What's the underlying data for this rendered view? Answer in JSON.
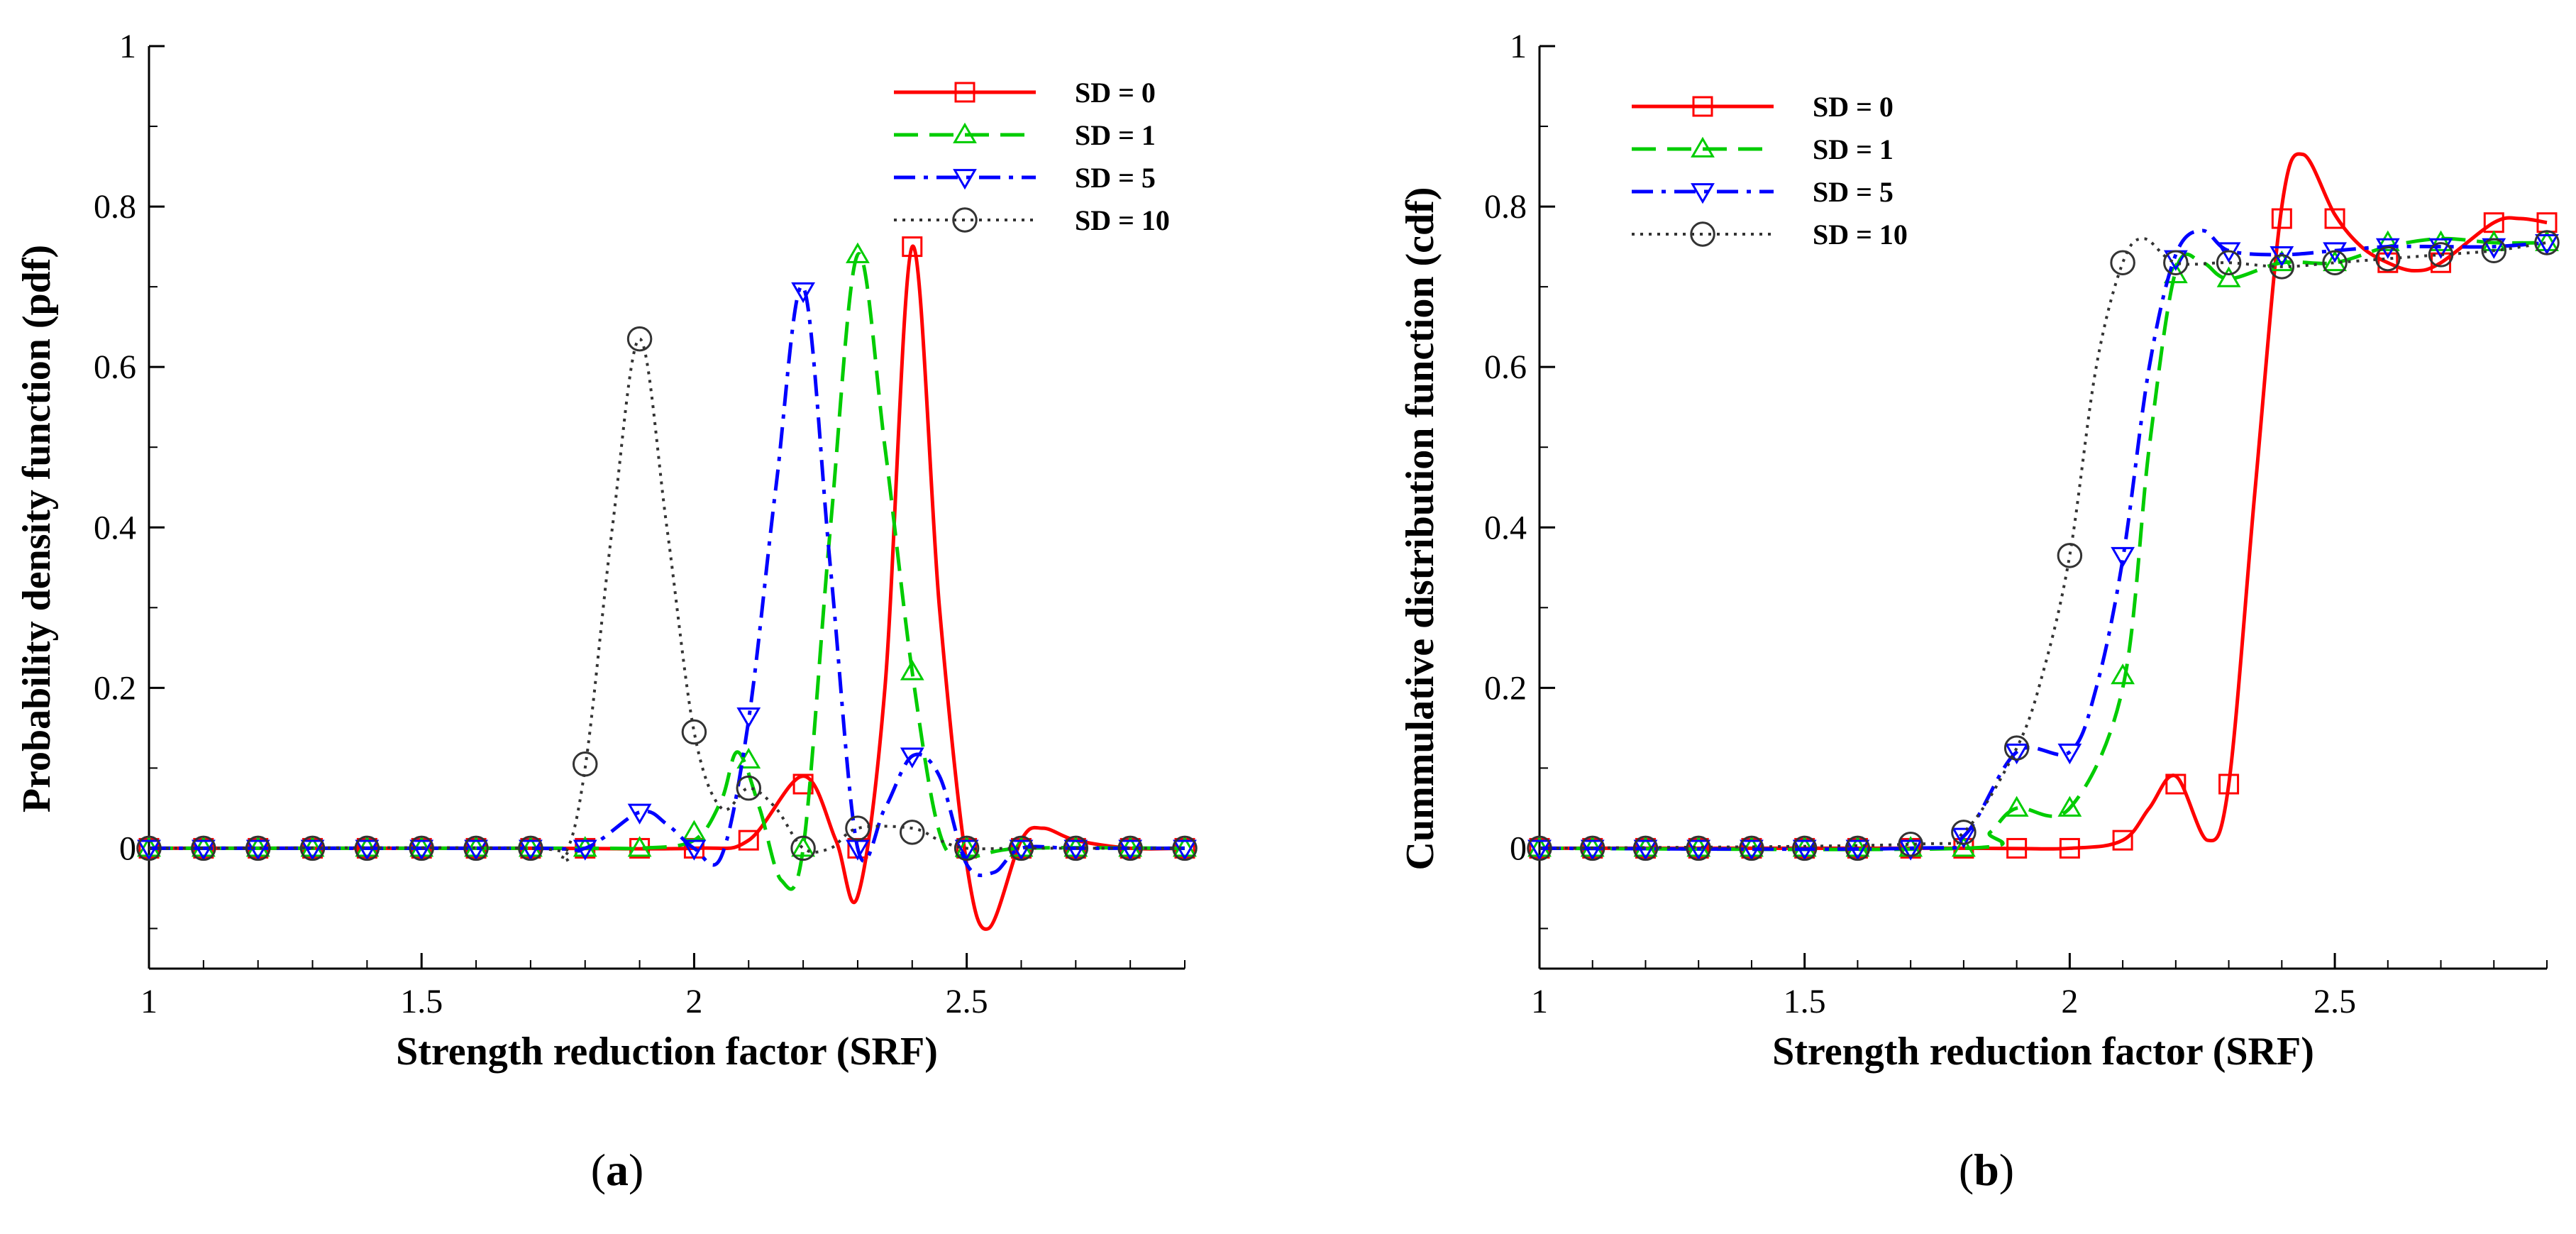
{
  "chart_data": [
    {
      "type": "line",
      "panel": "a",
      "caption_label": "a",
      "xlabel": "Strength reduction factor (SRF)",
      "ylabel": "Probability density function (pdf)",
      "xlim": [
        1,
        2.9
      ],
      "ylim": [
        -0.15,
        1
      ],
      "xticks": [
        1,
        1.5,
        2,
        2.5
      ],
      "xtick_labels": [
        "1",
        "1.5",
        "2",
        "2.5"
      ],
      "yticks": [
        0,
        0.2,
        0.4,
        0.6,
        0.8,
        1
      ],
      "ytick_labels": [
        "0",
        "0.2",
        "0.4",
        "0.6",
        "0.8",
        "1"
      ],
      "legend_position": "top-right",
      "series": [
        {
          "name": "SD = 0",
          "color": "#ff0000",
          "dash": "solid",
          "marker": "square",
          "curve_x": [
            1,
            1.7,
            2.0,
            2.1,
            2.2,
            2.26,
            2.3,
            2.35,
            2.4,
            2.45,
            2.5,
            2.54,
            2.6,
            2.64,
            2.7,
            2.8,
            2.9
          ],
          "curve_y": [
            0,
            0,
            0,
            0.01,
            0.09,
            0.01,
            -0.06,
            0.2,
            0.75,
            0.3,
            -0.02,
            -0.1,
            0.01,
            0.025,
            0.01,
            0,
            0
          ],
          "marker_x": [
            1,
            1.1,
            1.2,
            1.3,
            1.4,
            1.5,
            1.6,
            1.7,
            1.8,
            1.9,
            2.0,
            2.1,
            2.2,
            2.3,
            2.4,
            2.5,
            2.6,
            2.7,
            2.8,
            2.9
          ],
          "marker_y": [
            0,
            0,
            0,
            0,
            0,
            0,
            0,
            0,
            0,
            0,
            0,
            0.01,
            0.08,
            0,
            0.75,
            0,
            0,
            0,
            0,
            0
          ]
        },
        {
          "name": "SD = 1",
          "color": "#00cc00",
          "dash": "dashed",
          "marker": "triangle-up",
          "curve_x": [
            1,
            1.8,
            1.9,
            2.0,
            2.05,
            2.08,
            2.12,
            2.16,
            2.2,
            2.25,
            2.3,
            2.35,
            2.4,
            2.45,
            2.5,
            2.6,
            2.9
          ],
          "curve_y": [
            0,
            0,
            0,
            0.01,
            0.06,
            0.12,
            0.05,
            -0.04,
            0.0,
            0.4,
            0.74,
            0.5,
            0.22,
            0.02,
            -0.01,
            0,
            0
          ],
          "marker_x": [
            1,
            1.1,
            1.2,
            1.3,
            1.4,
            1.5,
            1.6,
            1.7,
            1.8,
            1.9,
            2.0,
            2.1,
            2.2,
            2.3,
            2.4,
            2.5,
            2.6,
            2.7,
            2.8,
            2.9
          ],
          "marker_y": [
            0,
            0,
            0,
            0,
            0,
            0,
            0,
            0,
            0,
            0,
            0.02,
            0.11,
            0,
            0.74,
            0.22,
            0,
            0,
            0,
            0,
            0
          ]
        },
        {
          "name": "SD = 5",
          "color": "#0000ff",
          "dash": "dashdot",
          "marker": "triangle-down",
          "curve_x": [
            1,
            1.7,
            1.8,
            1.9,
            1.95,
            2.0,
            2.05,
            2.1,
            2.15,
            2.2,
            2.25,
            2.3,
            2.35,
            2.4,
            2.45,
            2.5,
            2.55,
            2.6,
            2.7,
            2.9
          ],
          "curve_y": [
            0,
            0,
            0,
            0.045,
            0.03,
            0.0,
            -0.01,
            0.16,
            0.45,
            0.7,
            0.35,
            0.0,
            0.05,
            0.115,
            0.09,
            -0.02,
            -0.03,
            0.0,
            0,
            0
          ],
          "marker_x": [
            1,
            1.1,
            1.2,
            1.3,
            1.4,
            1.5,
            1.6,
            1.7,
            1.8,
            1.9,
            2.0,
            2.1,
            2.2,
            2.3,
            2.4,
            2.5,
            2.6,
            2.7,
            2.8,
            2.9
          ],
          "marker_y": [
            0,
            0,
            0,
            0,
            0,
            0,
            0,
            0,
            0,
            0.045,
            0,
            0.165,
            0.695,
            0,
            0.115,
            0,
            0,
            0,
            0,
            0
          ]
        },
        {
          "name": "SD = 10",
          "color": "#333333",
          "dash": "dotted",
          "marker": "circle",
          "curve_x": [
            1,
            1.7,
            1.76,
            1.8,
            1.85,
            1.9,
            1.95,
            2.0,
            2.05,
            2.1,
            2.15,
            2.2,
            2.25,
            2.3,
            2.4,
            2.45,
            2.5,
            2.6,
            2.9
          ],
          "curve_y": [
            0,
            0,
            -0.01,
            0.1,
            0.4,
            0.635,
            0.4,
            0.145,
            0.05,
            0.075,
            0.05,
            0.0,
            0.0,
            0.025,
            0.025,
            0.01,
            0,
            0,
            0
          ],
          "marker_x": [
            1,
            1.1,
            1.2,
            1.3,
            1.4,
            1.5,
            1.6,
            1.7,
            1.8,
            1.9,
            2.0,
            2.1,
            2.2,
            2.3,
            2.4,
            2.5,
            2.6,
            2.7,
            2.8,
            2.9
          ],
          "marker_y": [
            0,
            0,
            0,
            0,
            0,
            0,
            0,
            0,
            0.105,
            0.635,
            0.145,
            0.075,
            0,
            0.025,
            0.02,
            0,
            0,
            0,
            0,
            0
          ]
        }
      ]
    },
    {
      "type": "line",
      "panel": "b",
      "caption_label": "b",
      "xlabel": "Strength reduction factor (SRF)",
      "ylabel": "Cummulative distribution function (cdf)",
      "xlim": [
        1,
        2.9
      ],
      "ylim": [
        -0.15,
        1
      ],
      "xticks": [
        1,
        1.5,
        2,
        2.5
      ],
      "xtick_labels": [
        "1",
        "1.5",
        "2",
        "2.5"
      ],
      "yticks": [
        0,
        0.2,
        0.4,
        0.6,
        0.8,
        1
      ],
      "ytick_labels": [
        "0",
        "0.2",
        "0.4",
        "0.6",
        "0.8",
        "1"
      ],
      "legend_position": "top-left",
      "series": [
        {
          "name": "SD = 0",
          "color": "#ff0000",
          "dash": "solid",
          "marker": "square",
          "curve_x": [
            1,
            1.8,
            2.0,
            2.1,
            2.15,
            2.2,
            2.26,
            2.3,
            2.35,
            2.4,
            2.44,
            2.5,
            2.55,
            2.6,
            2.65,
            2.7,
            2.8,
            2.85,
            2.9
          ],
          "curve_y": [
            0,
            0,
            0,
            0.01,
            0.05,
            0.09,
            0.01,
            0.08,
            0.45,
            0.8,
            0.865,
            0.79,
            0.75,
            0.73,
            0.72,
            0.73,
            0.78,
            0.785,
            0.78
          ],
          "marker_x": [
            1,
            1.1,
            1.2,
            1.3,
            1.4,
            1.5,
            1.6,
            1.7,
            1.8,
            1.9,
            2.0,
            2.1,
            2.2,
            2.3,
            2.4,
            2.5,
            2.6,
            2.7,
            2.8,
            2.9
          ],
          "marker_y": [
            0,
            0,
            0,
            0,
            0,
            0,
            0,
            0,
            0,
            0,
            0,
            0.01,
            0.08,
            0.08,
            0.785,
            0.785,
            0.73,
            0.73,
            0.78,
            0.78
          ]
        },
        {
          "name": "SD = 1",
          "color": "#00cc00",
          "dash": "dashed",
          "marker": "triangle-up",
          "curve_x": [
            1,
            1.8,
            1.85,
            1.9,
            2.0,
            2.1,
            2.15,
            2.2,
            2.25,
            2.3,
            2.4,
            2.5,
            2.6,
            2.7,
            2.8,
            2.9
          ],
          "curve_y": [
            0,
            0,
            0.02,
            0.05,
            0.05,
            0.2,
            0.5,
            0.72,
            0.73,
            0.71,
            0.73,
            0.73,
            0.75,
            0.76,
            0.755,
            0.755
          ],
          "marker_x": [
            1,
            1.1,
            1.2,
            1.3,
            1.4,
            1.5,
            1.6,
            1.7,
            1.8,
            1.9,
            2.0,
            2.1,
            2.2,
            2.3,
            2.4,
            2.5,
            2.6,
            2.7,
            2.8,
            2.9
          ],
          "marker_y": [
            0,
            0,
            0,
            0,
            0,
            0,
            0,
            0,
            0,
            0.05,
            0.05,
            0.215,
            0.715,
            0.71,
            0.73,
            0.73,
            0.755,
            0.755,
            0.755,
            0.755
          ]
        },
        {
          "name": "SD = 5",
          "color": "#0000ff",
          "dash": "dashdot",
          "marker": "triangle-down",
          "curve_x": [
            1,
            1.7,
            1.8,
            1.9,
            2.0,
            2.05,
            2.1,
            2.15,
            2.2,
            2.25,
            2.3,
            2.4,
            2.5,
            2.6,
            2.7,
            2.8,
            2.9
          ],
          "curve_y": [
            0,
            0,
            0.015,
            0.12,
            0.12,
            0.2,
            0.36,
            0.6,
            0.74,
            0.77,
            0.745,
            0.74,
            0.745,
            0.75,
            0.75,
            0.75,
            0.755
          ],
          "marker_x": [
            1,
            1.1,
            1.2,
            1.3,
            1.4,
            1.5,
            1.6,
            1.7,
            1.8,
            1.9,
            2.0,
            2.1,
            2.2,
            2.3,
            2.4,
            2.5,
            2.6,
            2.7,
            2.8,
            2.9
          ],
          "marker_y": [
            0,
            0,
            0,
            0,
            0,
            0,
            0,
            0,
            0.015,
            0.12,
            0.12,
            0.365,
            0.735,
            0.745,
            0.74,
            0.745,
            0.75,
            0.75,
            0.75,
            0.755
          ]
        },
        {
          "name": "SD = 10",
          "color": "#333333",
          "dash": "dotted",
          "marker": "circle",
          "curve_x": [
            1,
            1.7,
            1.8,
            1.9,
            1.95,
            2.0,
            2.05,
            2.1,
            2.14,
            2.2,
            2.3,
            2.4,
            2.5,
            2.6,
            2.7,
            2.8,
            2.9
          ],
          "curve_y": [
            0,
            0.005,
            0.02,
            0.125,
            0.22,
            0.365,
            0.6,
            0.73,
            0.76,
            0.73,
            0.73,
            0.725,
            0.73,
            0.735,
            0.74,
            0.745,
            0.755
          ],
          "marker_x": [
            1,
            1.1,
            1.2,
            1.3,
            1.4,
            1.5,
            1.6,
            1.7,
            1.8,
            1.9,
            2.0,
            2.1,
            2.2,
            2.3,
            2.4,
            2.5,
            2.6,
            2.7,
            2.8,
            2.9
          ],
          "marker_y": [
            0,
            0,
            0,
            0,
            0,
            0,
            0,
            0.005,
            0.02,
            0.125,
            0.365,
            0.73,
            0.73,
            0.73,
            0.725,
            0.73,
            0.735,
            0.74,
            0.745,
            0.755
          ]
        }
      ]
    }
  ]
}
